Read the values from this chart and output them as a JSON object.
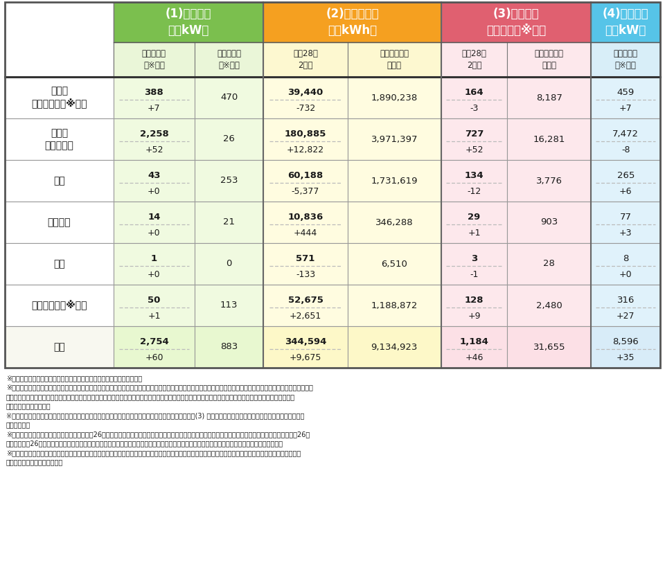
{
  "header1": [
    "(1)導入容量\n（万kW）",
    "(2)買取電力量\n（万kWh）",
    "(3)買取金額\n（億円）（※３）",
    "(4)認定容量\n（万kW）"
  ],
  "header1_colors": [
    "#7bbf4e",
    "#f5a020",
    "#e06070",
    "#56c4e8"
  ],
  "header2": [
    "新規認定分\n（※１）",
    "移行認定分\n（※２）",
    "平成28年\n2月分",
    "制度開始から\nの累計",
    "平成28年\n2月分",
    "制度開始から\nの累計",
    "新規認定分\n（※１）"
  ],
  "header2_bg": [
    "#eaf6d8",
    "#eaf6d8",
    "#fdf8d0",
    "#fdf8d0",
    "#fde8ec",
    "#fde8ec",
    "#d8eef8"
  ],
  "row_labels": [
    "太陽光\n（住宅）　（※４）",
    "太陽光\n（非住宅）",
    "風力",
    "中小水力",
    "地熱",
    "バイオマス（※５）",
    "合計"
  ],
  "data": [
    [
      "388\n+7",
      "470",
      "39,440\n-732",
      "1,890,238",
      "164\n-3",
      "8,187",
      "459\n+7"
    ],
    [
      "2,258\n+52",
      "26",
      "180,885\n+12,822",
      "3,971,397",
      "727\n+52",
      "16,281",
      "7,472\n-8"
    ],
    [
      "43\n+0",
      "253",
      "60,188\n-5,377",
      "1,731,619",
      "134\n-12",
      "3,776",
      "265\n+6"
    ],
    [
      "14\n+0",
      "21",
      "10,836\n+444",
      "346,288",
      "29\n+1",
      "903",
      "77\n+3"
    ],
    [
      "1\n+0",
      "0",
      "571\n-133",
      "6,510",
      "3\n-1",
      "28",
      "8\n+0"
    ],
    [
      "50\n+1",
      "113",
      "52,675\n+2,651",
      "1,188,872",
      "128\n+9",
      "2,480",
      "316\n+27"
    ],
    [
      "2,754\n+60",
      "883",
      "344,594\n+9,675",
      "9,134,923",
      "1,184\n+46",
      "31,655",
      "8,596\n+35"
    ]
  ],
  "col_bgs": [
    "#f0fae0",
    "#f0fae0",
    "#fffce0",
    "#fffce0",
    "#fde8ec",
    "#fde8ec",
    "#e0f2fb"
  ],
  "col_bgs_total": [
    "#e8f8d0",
    "#e8f8d0",
    "#fdf8c8",
    "#fdf8c8",
    "#fce0e6",
    "#fce0e6",
    "#d8ecf8"
  ],
  "footnotes": [
    "※１「新規認定分」とは、本制度開始後に新たに認定を受けた設備です。",
    "※２「移行認定分」とは、再エネ特措法（以下、「法」という。）施行規則第２条に規定されている、法の施行の日において既に発電を開始していた設備、もしくは、",
    "　　法附則第６条第１項に定める特例太陽光発電設備（太陽光発電の余剰電力買取制度の下で買取対象となっていた設備）であって、本制度開始後に本制度へ",
    "　　移行した設備です。",
    "※３　電気事業者に支払われる交付金（電気をご利用の皆様からいただく賦課金で賄われるもの）は、(3) の買取金額から回避可能費用等を差し引いた金額とな",
    "　　ります。",
    "※４　太陽光（住宅）について、前年度（平成26年３月）までの導入状況の公表においては、導入時期が法施行日の前か後かで分類しておりましたが、平成26年",
    "　　度（平成26年４月）からは、本制度開始後に新たに認定を受けた設備を明確に分類するため、「新規認定」か「移行認定」かの分類としました。",
    "※５　バイオマス発電設備については、前年度までの集計手法から、より実態を反映した集計手法とするため、今年度より認定時のバイオマス比率を乗じて得た",
    "　　推計値を集計しています。"
  ]
}
